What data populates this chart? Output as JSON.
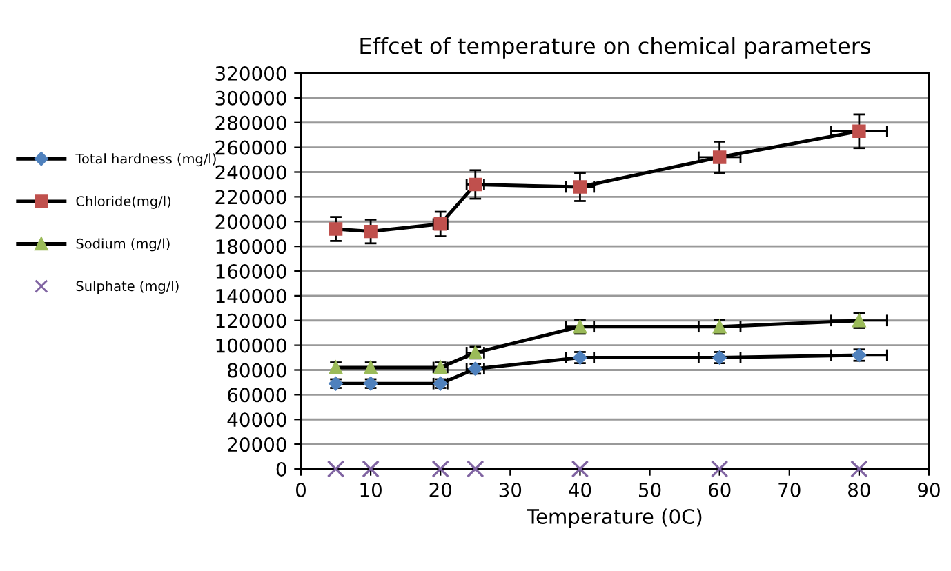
{
  "chart_data": {
    "type": "line",
    "title": "Effcet of temperature on chemical parameters",
    "xlabel": "Temperature (0C)",
    "x": [
      5,
      10,
      20,
      25,
      40,
      60,
      80
    ],
    "series": [
      {
        "name": "Total hardness (mg/l)",
        "color": "#4f81bd",
        "marker": "diamond",
        "values": [
          69000,
          69000,
          69000,
          81000,
          90000,
          90000,
          92000
        ],
        "errors": [
          3500,
          3500,
          3500,
          4000,
          4500,
          4500,
          4600
        ],
        "xerrors": [
          null,
          null,
          1,
          1.25,
          2,
          3,
          4
        ]
      },
      {
        "name": "Chloride(mg/l)",
        "color": "#c0504d",
        "marker": "square",
        "values": [
          194000,
          192000,
          198000,
          230000,
          228000,
          252000,
          273000
        ],
        "errors": [
          9700,
          9600,
          9900,
          11500,
          11400,
          12600,
          13600
        ],
        "xerrors": [
          null,
          null,
          1,
          1.25,
          2,
          3,
          4
        ]
      },
      {
        "name": "Sodium (mg/l)",
        "color": "#9bbb59",
        "marker": "triangle",
        "values": [
          82000,
          82000,
          82000,
          94000,
          115000,
          115000,
          120000
        ],
        "errors": [
          4100,
          4100,
          4100,
          4700,
          5700,
          5700,
          6000
        ],
        "xerrors": [
          null,
          null,
          1,
          1.25,
          2,
          3,
          4
        ]
      },
      {
        "name": "Sulphate (mg/l)",
        "color": "#8064a2",
        "marker": "cross",
        "type": "scatter",
        "values": [
          0,
          0,
          0,
          0,
          0,
          0,
          0
        ]
      }
    ],
    "xlim": [
      0,
      90
    ],
    "xticks": [
      0,
      10,
      20,
      30,
      40,
      50,
      60,
      70,
      80,
      90
    ],
    "ylim": [
      0,
      320000
    ],
    "yticks": [
      0,
      20000,
      40000,
      60000,
      80000,
      100000,
      120000,
      140000,
      160000,
      180000,
      200000,
      220000,
      240000,
      260000,
      280000,
      300000,
      320000
    ],
    "grid": "y",
    "legend": "left"
  }
}
